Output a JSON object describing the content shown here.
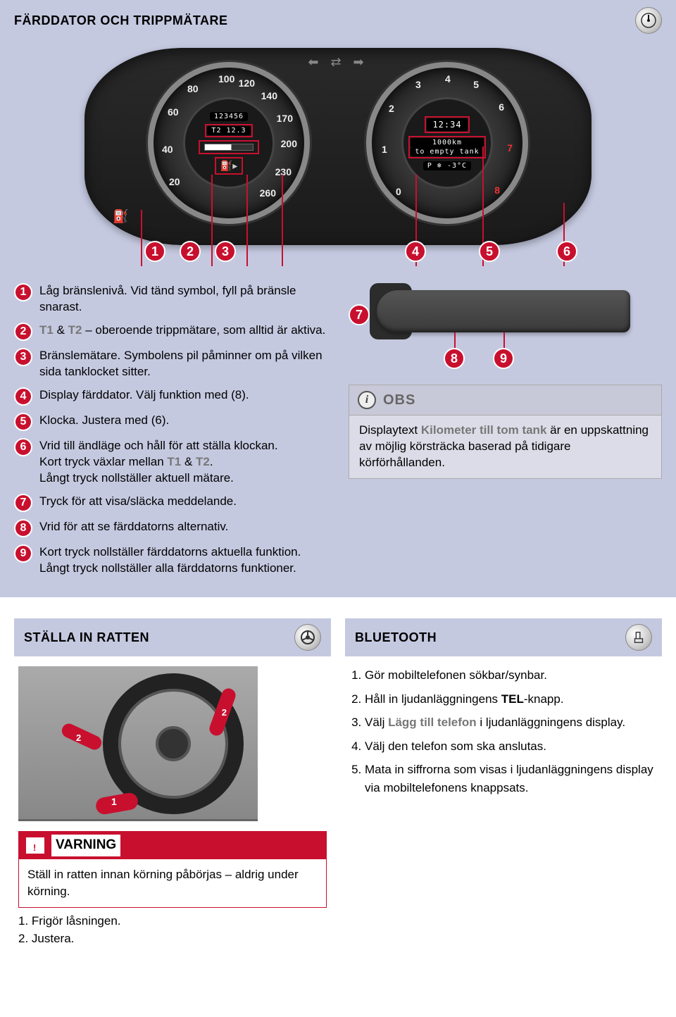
{
  "colors": {
    "panel_bg": "#c5c9e0",
    "accent_red": "#c8102e",
    "text": "#000000",
    "grey_text": "#777777",
    "obs_bg": "#dcdce8"
  },
  "main": {
    "title": "FÄRDDATOR OCH TRIPPMÄTARE",
    "dashboard": {
      "left_gauge": {
        "odometer": "123456",
        "trip_line": "T2  12.3",
        "speed_ticks": [
          "20",
          "40",
          "60",
          "80",
          "100",
          "120",
          "140",
          "170",
          "200",
          "230",
          "260"
        ]
      },
      "right_gauge": {
        "clock": "12:34",
        "range_line1": "1000km",
        "range_line2": "to  empty  tank",
        "status_line": "P ❄ -3°C",
        "rpm_ticks": [
          "0",
          "1",
          "2",
          "3",
          "4",
          "5",
          "6",
          "7",
          "8"
        ]
      },
      "callouts": [
        "1",
        "2",
        "3",
        "4",
        "5",
        "6"
      ]
    },
    "left_items": [
      {
        "n": "1",
        "html": "Låg bränslenivå. Vid tänd symbol, fyll på bränsle snarast."
      },
      {
        "n": "2",
        "html": "<span class='grey'>T1</span> & <span class='grey'>T2</span> – oberoende trippmätare, som alltid är aktiva."
      },
      {
        "n": "3",
        "html": "Bränslemätare. Symbolens pil påminner om på vilken sida tanklocket sitter."
      },
      {
        "n": "4",
        "html": "Display färddator. Välj funktion med (8)."
      },
      {
        "n": "5",
        "html": "Klocka. Justera med (6)."
      },
      {
        "n": "6",
        "html": "Vrid till ändläge och håll för att ställa klockan.<br>Kort tryck växlar mellan <span class='grey'>T1</span> & <span class='grey'>T2</span>.<br>Långt tryck nollställer aktuell mätare."
      },
      {
        "n": "7",
        "html": "Tryck för att visa/släcka meddelande."
      },
      {
        "n": "8",
        "html": "Vrid för att se färddatorns alternativ."
      },
      {
        "n": "9",
        "html": "Kort tryck nollställer färddatorns aktuella funktion.<br>Långt tryck nollställer alla färddatorns funktioner."
      }
    ],
    "stalk_callouts": [
      "7",
      "8",
      "9"
    ],
    "obs": {
      "title": "OBS",
      "body_html": "Displaytext <span class='grey'>Kilometer till tom tank</span> är en uppskattning av möjlig körsträcka baserad på tidigare körförhållanden."
    }
  },
  "lower_left": {
    "title": "STÄLLA IN RATTEN",
    "warning_title": "VARNING",
    "warning_body": "Ställ in ratten innan körning påbörjas – aldrig under körning.",
    "steps": [
      "1. Frigör låsningen.",
      "2. Justera."
    ],
    "arrow_labels": [
      "1",
      "2",
      "2"
    ]
  },
  "lower_right": {
    "title": "BLUETOOTH",
    "items": [
      "Gör mobiltelefonen sökbar/synbar.",
      "Håll in ljudanläggningens <strong class='inline'>TEL</strong>-knapp.",
      "Välj <span class='grey'>Lägg till telefon</span> i ljudanläggningens display.",
      "Välj den telefon som ska anslutas.",
      "Mata in siffrorna som visas i ljudanläggning­ens display via mobiltelefonens knappsats."
    ]
  }
}
